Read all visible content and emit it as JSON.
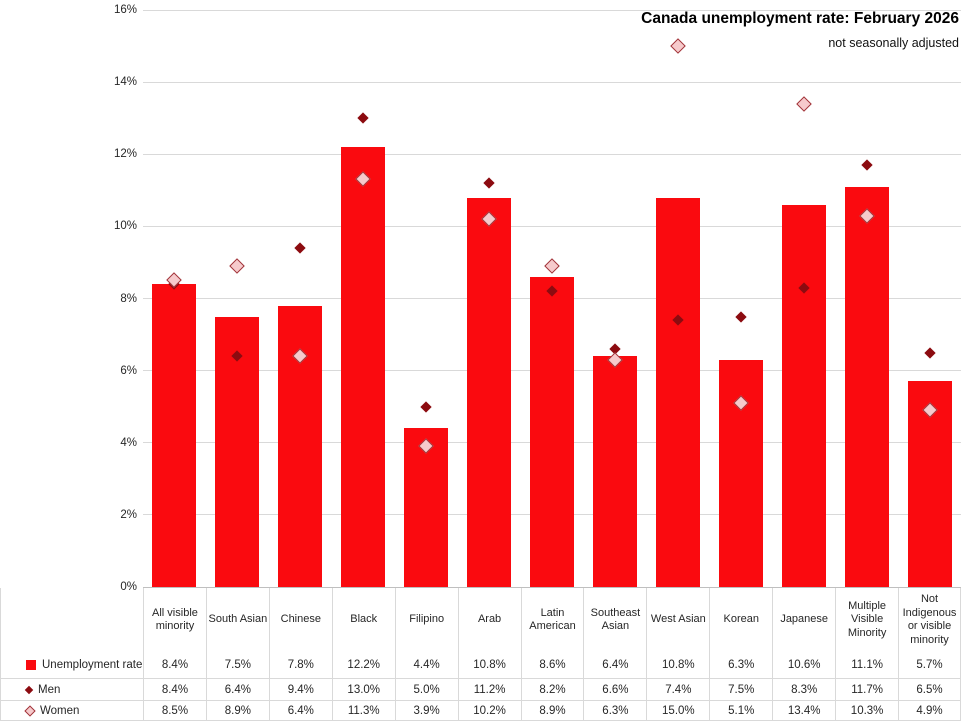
{
  "chart": {
    "title": "Canada unemployment rate: February 2026",
    "subtitle": "not seasonally adjusted"
  },
  "colors": {
    "bar": "#FA0A0F",
    "men_fill": "#8C0B10",
    "women_fill": "#F6CACC",
    "women_border": "#A03338",
    "gridline": "#D9D9D9",
    "axis_line": "#BFBFBF",
    "table_line": "#D9D9D9",
    "text": "#262626"
  },
  "chart_data": {
    "type": "bar",
    "title": "Canada unemployment rate: February 2026",
    "subtitle": "not seasonally adjusted",
    "xlabel": "",
    "ylabel": "",
    "ylim": [
      0,
      16
    ],
    "ytick_step": 2,
    "ytick_suffix": "%",
    "grid": true,
    "legend_position": "data-table-left",
    "categories": [
      "All visible minority",
      "South Asian",
      "Chinese",
      "Black",
      "Filipino",
      "Arab",
      "Latin American",
      "Southeast Asian",
      "West Asian",
      "Korean",
      "Japanese",
      "Multiple Visible Minority",
      "Not Indigenous or visible minority"
    ],
    "series": [
      {
        "name": "Unemployment rate",
        "style": "bar",
        "values": [
          8.4,
          7.5,
          7.8,
          12.2,
          4.4,
          10.8,
          8.6,
          6.4,
          10.8,
          6.3,
          10.6,
          11.1,
          5.7
        ]
      },
      {
        "name": "Men",
        "style": "diamond-filled",
        "values": [
          8.4,
          6.4,
          9.4,
          13.0,
          5.0,
          11.2,
          8.2,
          6.6,
          7.4,
          7.5,
          8.3,
          11.7,
          6.5
        ]
      },
      {
        "name": "Women",
        "style": "diamond-outline",
        "values": [
          8.5,
          8.9,
          6.4,
          11.3,
          3.9,
          10.2,
          8.9,
          6.3,
          15.0,
          5.1,
          13.4,
          10.3,
          4.9
        ]
      }
    ]
  }
}
